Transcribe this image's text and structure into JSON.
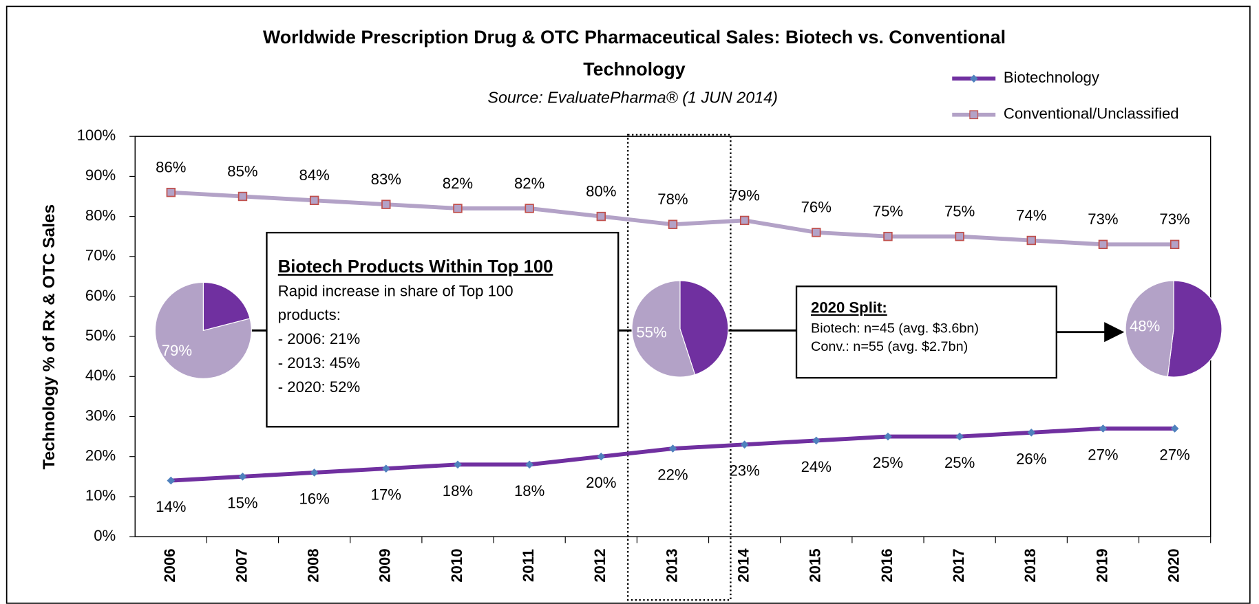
{
  "chart_data": {
    "type": "line",
    "title": [
      "Worldwide Prescription Drug & OTC Pharmaceutical Sales: Biotech vs. Conventional",
      "Technology"
    ],
    "subtitle": "Source: EvaluatePharma® (1 JUN 2014)",
    "y_label": "Technology % of Rx & OTC Sales",
    "categories": [
      "2006",
      "2007",
      "2008",
      "2009",
      "2010",
      "2011",
      "2012",
      "2013",
      "2014",
      "2015",
      "2016",
      "2017",
      "2018",
      "2019",
      "2020"
    ],
    "series": [
      {
        "name": "Biotechnology",
        "color": "#7030a0",
        "marker_color": "#4f81bd",
        "values": [
          14,
          15,
          16,
          17,
          18,
          18,
          20,
          22,
          23,
          24,
          25,
          25,
          26,
          27,
          27
        ],
        "value_labels": [
          "14%",
          "15%",
          "16%",
          "17%",
          "18%",
          "18%",
          "20%",
          "22%",
          "23%",
          "24%",
          "25%",
          "25%",
          "26%",
          "27%",
          "27%"
        ]
      },
      {
        "name": "Conventional/Unclassified",
        "color": "#b3a2c7",
        "marker_color": "#c0504d",
        "values": [
          86,
          85,
          84,
          83,
          82,
          82,
          80,
          78,
          79,
          76,
          75,
          75,
          74,
          73,
          73
        ],
        "value_labels": [
          "86%",
          "85%",
          "84%",
          "83%",
          "82%",
          "82%",
          "80%",
          "78%",
          "79%",
          "76%",
          "75%",
          "75%",
          "74%",
          "73%",
          "73%"
        ]
      }
    ],
    "ylim": [
      0,
      100
    ],
    "yticks": [
      {
        "value": 0,
        "label": "0%"
      },
      {
        "value": 10,
        "label": "10%"
      },
      {
        "value": 20,
        "label": "20%"
      },
      {
        "value": 30,
        "label": "30%"
      },
      {
        "value": 40,
        "label": "40%"
      },
      {
        "value": 50,
        "label": "50%"
      },
      {
        "value": 60,
        "label": "60%"
      },
      {
        "value": 70,
        "label": "70%"
      },
      {
        "value": 80,
        "label": "80%"
      },
      {
        "value": 90,
        "label": "90%"
      },
      {
        "value": 100,
        "label": "100%"
      }
    ],
    "grid": false,
    "legend": "top-right",
    "pies": [
      {
        "values": [
          21,
          79
        ],
        "label": "79%"
      },
      {
        "values": [
          45,
          55
        ],
        "label": "55%"
      },
      {
        "values": [
          52,
          48
        ],
        "label": "48%"
      }
    ],
    "annotations": [
      {
        "title": "Biotech Products Within Top 100",
        "lines": [
          "Rapid increase in share of Top 100",
          "products:",
          "- 2006: 21%",
          "- 2013: 45%",
          "- 2020: 52%"
        ]
      },
      {
        "title": "2020 Split:",
        "lines": [
          "Biotech: n=45 (avg. $3.6bn)",
          "Conv.: n=55 (avg. $2.7bn)"
        ]
      }
    ]
  }
}
